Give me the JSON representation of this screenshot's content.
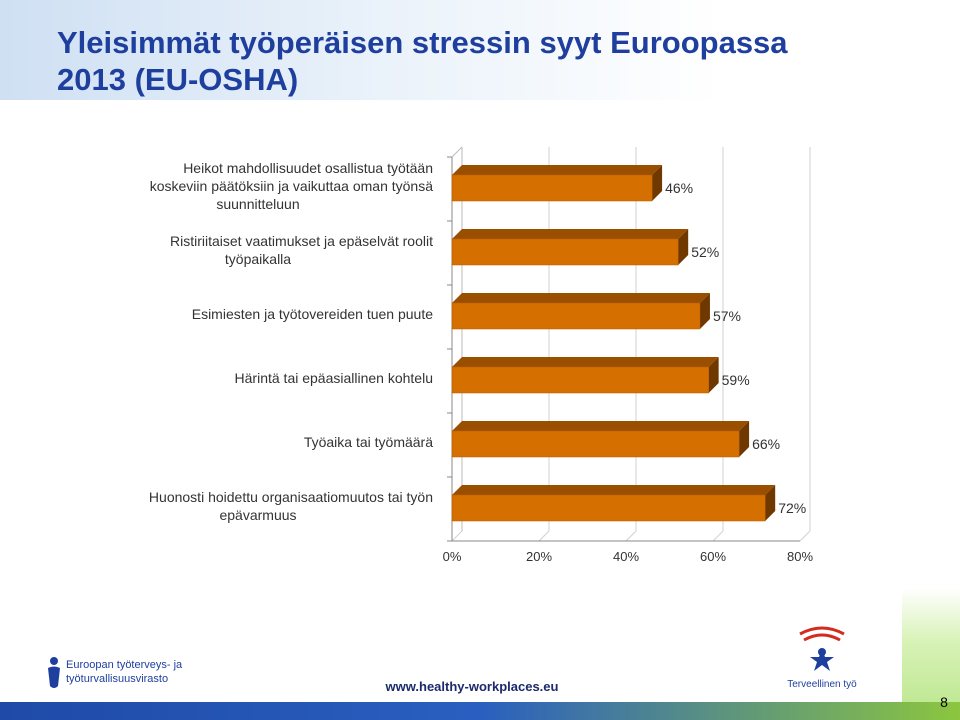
{
  "slide": {
    "title_line1": "Yleisimmät työperäisen stressin syyt Euroopassa",
    "title_line2": "2013 (EU-OSHA)",
    "url": "www.healthy-workplaces.eu",
    "page_number": "8",
    "logo_left_line1": "Euroopan työterveys- ja",
    "logo_left_line2": "työturvallisuusvirasto",
    "logo_right_label": "Terveellinen työ"
  },
  "colors": {
    "title": "#1f3f9e",
    "bar_front": "#d46f00",
    "bar_top": "#9a4f00",
    "bar_side": "#6e3800"
  },
  "chart_data": {
    "type": "bar",
    "orientation": "horizontal",
    "style": "3d",
    "categories": [
      [
        "Heikot mahdollisuudet osallistua työtään",
        "koskeviin päätöksiin ja vaikuttaa oman työnsä",
        "suunnitteluun"
      ],
      [
        "Ristiriitaiset vaatimukset ja epäselvät roolit",
        "työpaikalla"
      ],
      [
        "Esimiesten ja työtovereiden tuen puute"
      ],
      [
        "Härintä tai epäasiallinen kohtelu"
      ],
      [
        "Työaika tai työmäärä"
      ],
      [
        "Huonosti hoidettu organisaatiomuutos tai työn",
        "epävarmuus"
      ]
    ],
    "values": [
      46,
      52,
      57,
      59,
      66,
      72
    ],
    "value_labels": [
      "46%",
      "52%",
      "57%",
      "59%",
      "66%",
      "72%"
    ],
    "xlim": [
      0,
      80
    ],
    "ticks": [
      0,
      20,
      40,
      60,
      80
    ],
    "tick_labels": [
      "0%",
      "20%",
      "40%",
      "60%",
      "80%"
    ],
    "grid": true,
    "legend": "none"
  }
}
